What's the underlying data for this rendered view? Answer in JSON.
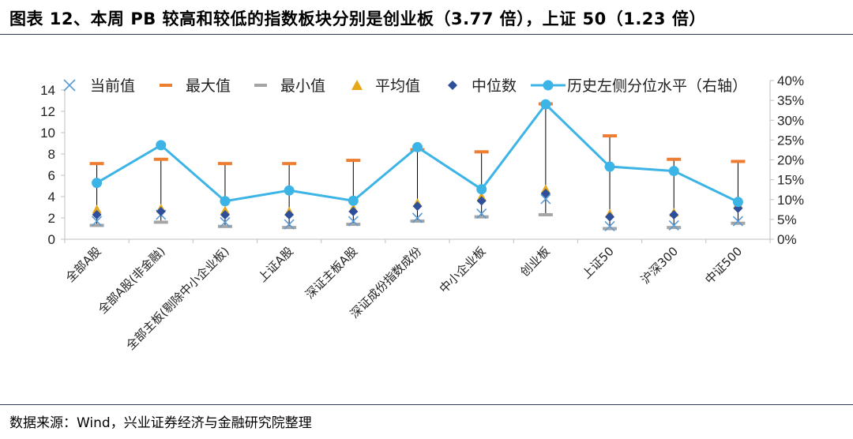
{
  "figure": {
    "title": "图表 12、本周 PB 较高和较低的指数板块分别是创业板（3.77 倍），上证 50（1.23 倍）",
    "source": "数据来源：Wind，兴业证券经济与金融研究院整理"
  },
  "colors": {
    "current": "#5b9bd5",
    "max": "#ed7d31",
    "min": "#a5a5a5",
    "avg": "#e6a817",
    "median": "#2e4f9a",
    "percentile": "#3cb4e6",
    "whisker": "#000000",
    "axis": "#bfbfbf",
    "rule": "#2d3a57"
  },
  "chart_data": {
    "type": "line",
    "categories": [
      "全部A股",
      "全部A股(非金融)",
      "全部主板(剔除中小企业板)",
      "上证A股",
      "深证主板A股",
      "深证成份指数成份",
      "中小企业板",
      "创业板",
      "上证50",
      "沪深300",
      "中证500"
    ],
    "series": [
      {
        "name": "当前值",
        "axis": "left",
        "marker": "x",
        "values": [
          1.7,
          2.3,
          1.6,
          1.4,
          1.7,
          2.0,
          2.4,
          3.77,
          1.23,
          1.3,
          1.7
        ]
      },
      {
        "name": "最大值",
        "axis": "left",
        "marker": "dash",
        "values": [
          7.1,
          7.5,
          7.1,
          7.1,
          7.4,
          8.4,
          8.2,
          12.7,
          9.7,
          7.5,
          7.3
        ]
      },
      {
        "name": "最小值",
        "axis": "left",
        "marker": "dash",
        "values": [
          1.3,
          1.6,
          1.2,
          1.1,
          1.4,
          1.7,
          2.1,
          2.3,
          1.0,
          1.1,
          1.5
        ]
      },
      {
        "name": "平均值",
        "axis": "left",
        "marker": "triangle",
        "values": [
          2.8,
          2.9,
          2.7,
          2.6,
          2.9,
          3.4,
          4.0,
          4.7,
          2.4,
          2.5,
          3.3
        ]
      },
      {
        "name": "中位数",
        "axis": "left",
        "marker": "diamond",
        "values": [
          2.3,
          2.6,
          2.3,
          2.3,
          2.6,
          3.1,
          3.6,
          4.3,
          2.1,
          2.3,
          2.9
        ]
      },
      {
        "name": "历史左侧分位水平（右轴）",
        "axis": "right",
        "marker": "circle-line",
        "values": [
          14.2,
          23.7,
          9.6,
          12.3,
          9.7,
          23.2,
          12.6,
          34.0,
          18.3,
          17.2,
          9.4
        ]
      }
    ],
    "y_left": {
      "min": 0,
      "max": 14,
      "ticks": [
        "0",
        "2",
        "4",
        "6",
        "8",
        "10",
        "12",
        "14"
      ]
    },
    "y_right": {
      "min": 0,
      "max": 40,
      "ticks": [
        "0%",
        "5%",
        "10%",
        "15%",
        "20%",
        "25%",
        "30%",
        "35%",
        "40%"
      ]
    },
    "legend_position": "top",
    "grid": false
  }
}
